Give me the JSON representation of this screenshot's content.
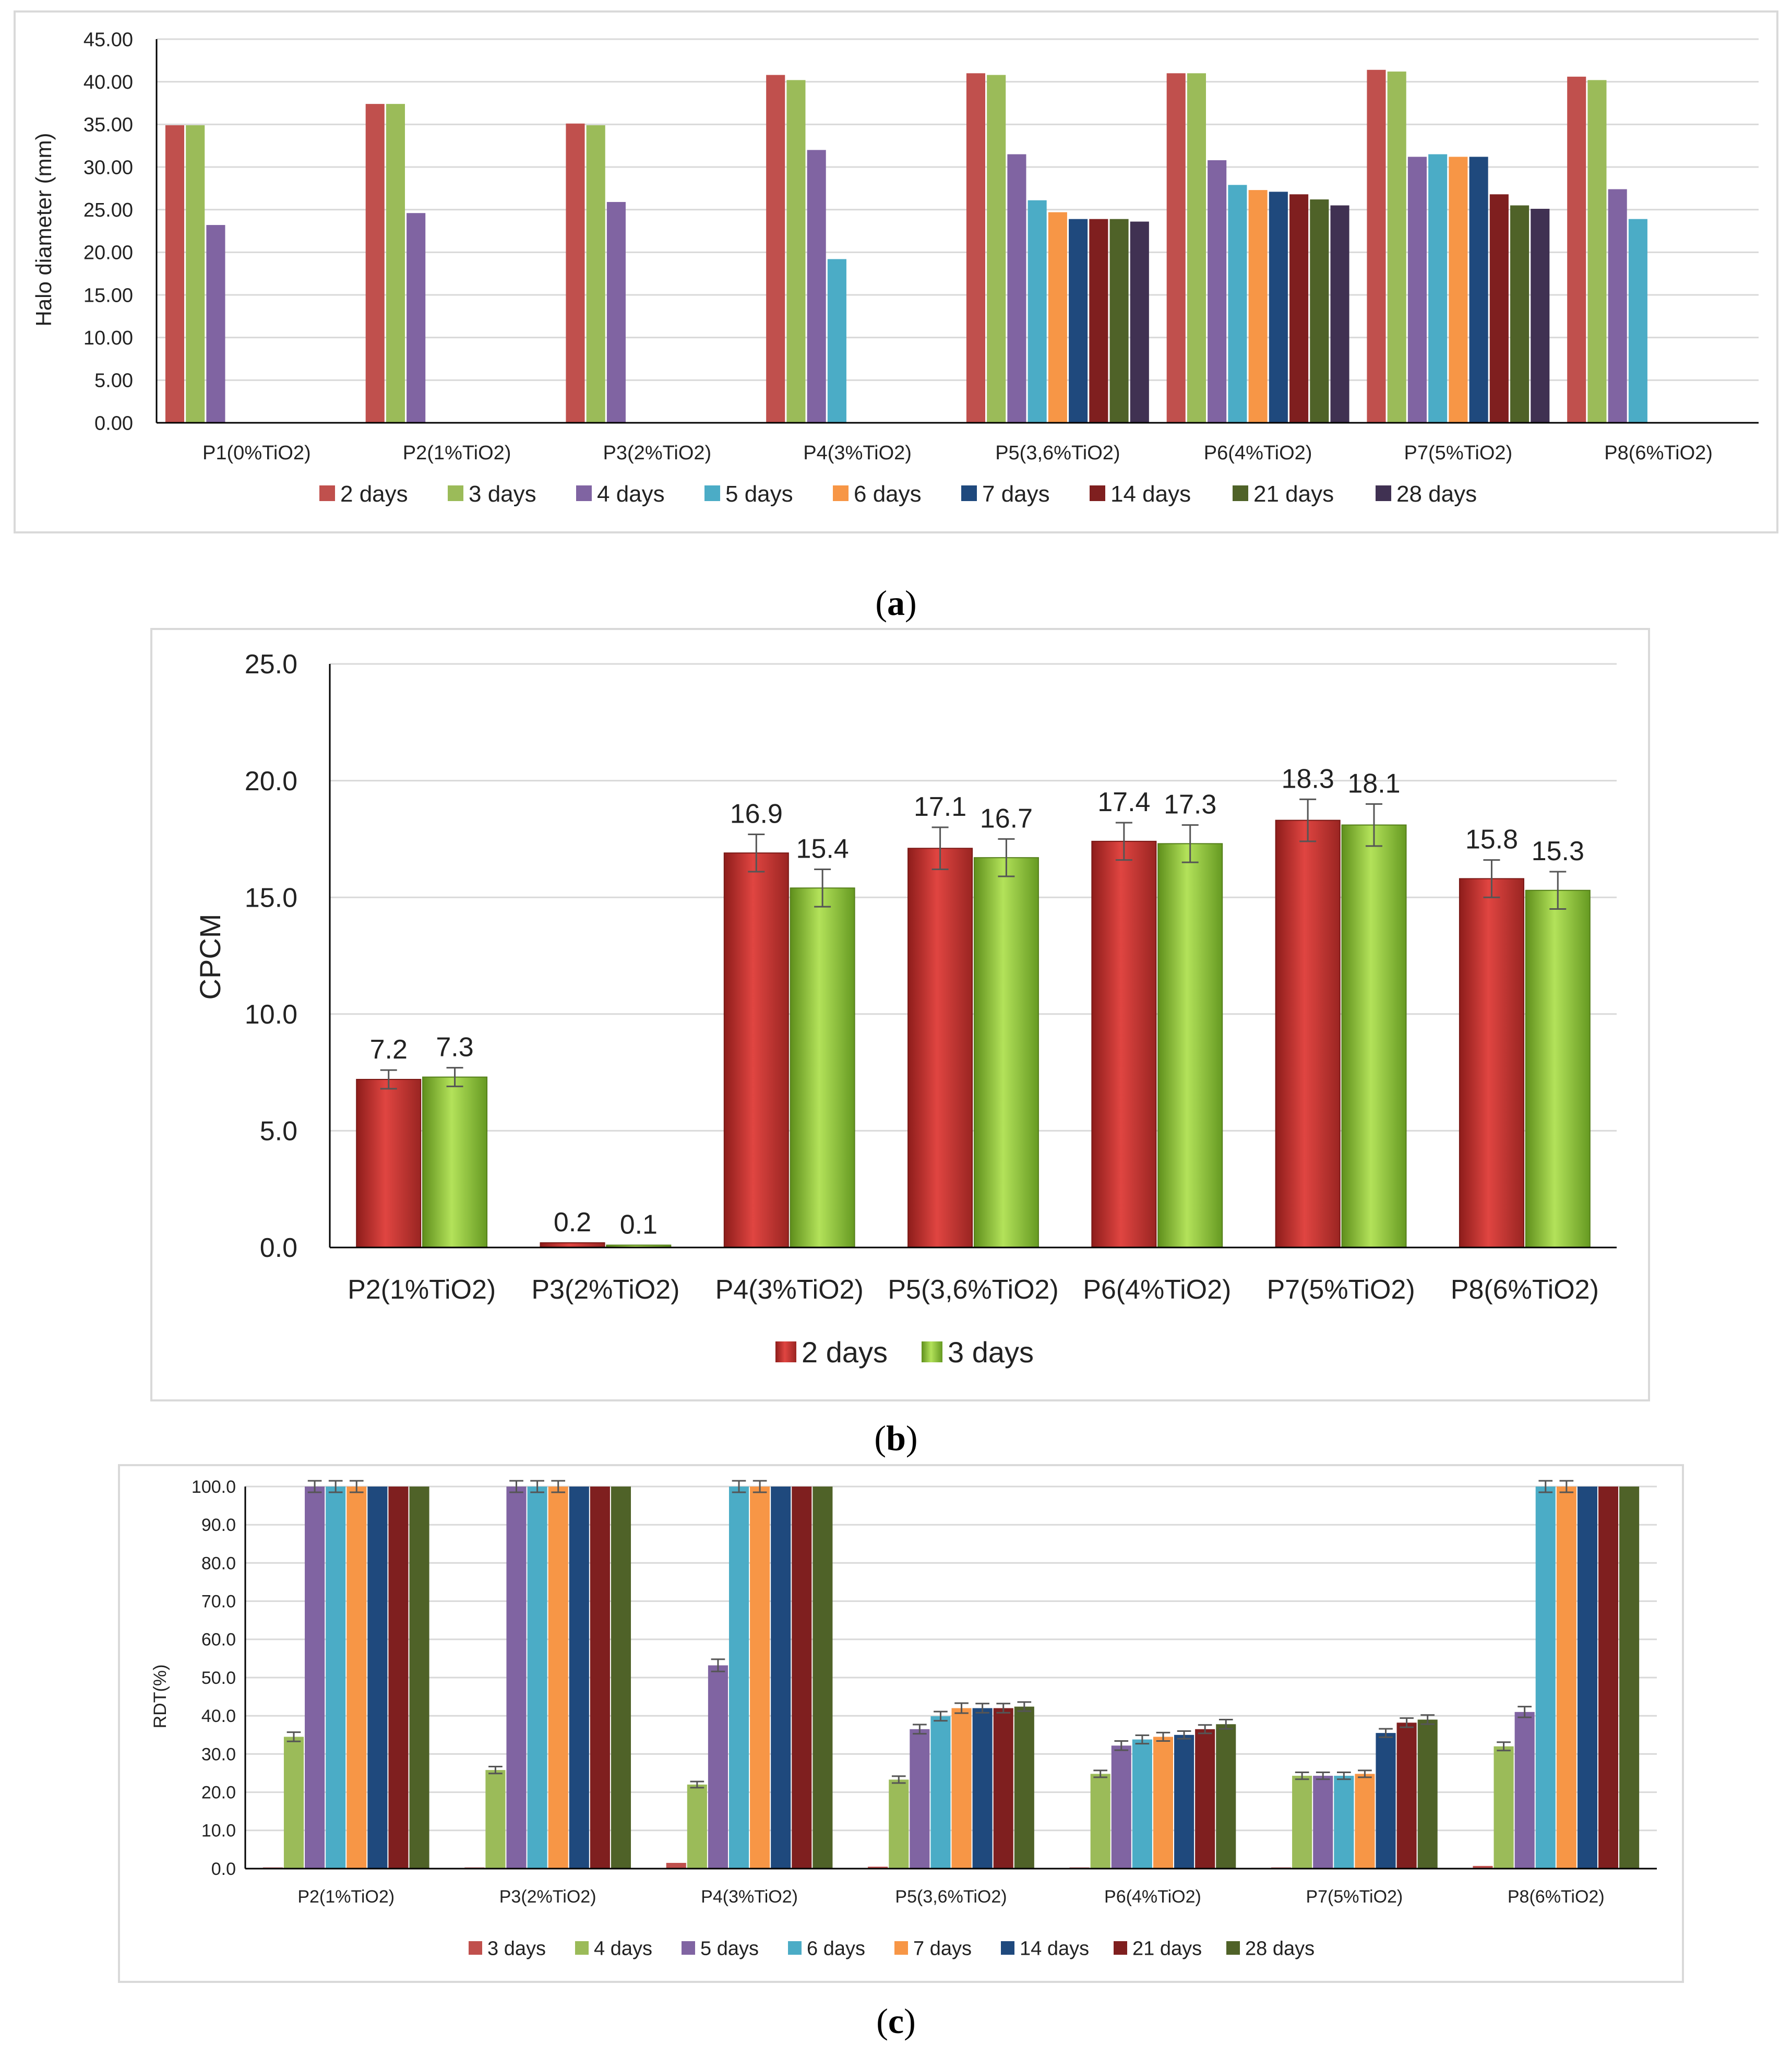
{
  "panel_labels": {
    "a_open": "(",
    "a_letter": "a",
    "a_close": ")",
    "b_open": "(",
    "b_letter": "b",
    "b_close": ")",
    "c_open": "(",
    "c_letter": "c",
    "c_close": ")"
  },
  "chart_data": [
    {
      "id": "a",
      "type": "bar",
      "title": "",
      "xlabel": "",
      "ylabel": "Halo diameter (mm)",
      "ylim": [
        0,
        45
      ],
      "ytick_step": 5,
      "ytick_decimals": 2,
      "grid": true,
      "legend_position": "bottom",
      "categories": [
        "P1(0%TiO2)",
        "P2(1%TiO2)",
        "P3(2%TiO2)",
        "P4(3%TiO2)",
        "P5(3,6%TiO2)",
        "P6(4%TiO2)",
        "P7(5%TiO2)",
        "P8(6%TiO2)"
      ],
      "series": [
        {
          "name": "2 days",
          "color": "#c0504d",
          "values": [
            34.9,
            37.4,
            35.1,
            40.8,
            41.0,
            41.0,
            41.4,
            40.6
          ]
        },
        {
          "name": "3 days",
          "color": "#9bbb59",
          "values": [
            34.9,
            37.4,
            34.9,
            40.2,
            40.8,
            41.0,
            41.2,
            40.2
          ]
        },
        {
          "name": "4 days",
          "color": "#8064a2",
          "values": [
            23.2,
            24.6,
            25.9,
            32.0,
            31.5,
            30.8,
            31.2,
            27.4
          ]
        },
        {
          "name": "5 days",
          "color": "#4bacc6",
          "values": [
            null,
            null,
            null,
            19.2,
            26.1,
            27.9,
            31.5,
            23.9
          ]
        },
        {
          "name": "6 days",
          "color": "#f79646",
          "values": [
            null,
            null,
            null,
            null,
            24.7,
            27.3,
            31.2,
            null
          ]
        },
        {
          "name": "7 days",
          "color": "#1f497d",
          "values": [
            null,
            null,
            null,
            null,
            23.9,
            27.1,
            31.2,
            null
          ]
        },
        {
          "name": "14 days",
          "color": "#7f1f1f",
          "values": [
            null,
            null,
            null,
            null,
            23.9,
            26.8,
            26.8,
            null
          ]
        },
        {
          "name": "21 days",
          "color": "#4f6228",
          "values": [
            null,
            null,
            null,
            null,
            23.9,
            26.2,
            25.5,
            null
          ]
        },
        {
          "name": "28 days",
          "color": "#403152",
          "values": [
            null,
            null,
            null,
            null,
            23.6,
            25.5,
            25.1,
            null
          ]
        }
      ]
    },
    {
      "id": "b",
      "type": "bar",
      "title": "",
      "xlabel": "",
      "ylabel": "CPCM",
      "ylim": [
        0,
        25
      ],
      "ytick_step": 5,
      "ytick_decimals": 1,
      "grid": true,
      "legend_position": "bottom",
      "categories": [
        "P2(1%TiO2)",
        "P3(2%TiO2)",
        "P4(3%TiO2)",
        "P5(3,6%TiO2)",
        "P6(4%TiO2)",
        "P7(5%TiO2)",
        "P8(6%TiO2)"
      ],
      "series": [
        {
          "name": "2 days",
          "color": "#c0504d",
          "values": [
            7.2,
            0.2,
            16.9,
            17.1,
            17.4,
            18.3,
            15.8
          ],
          "labels": [
            "7.2",
            "0.2",
            "16.9",
            "17.1",
            "17.4",
            "18.3",
            "15.8"
          ],
          "errors": [
            0.4,
            0.0,
            0.8,
            0.9,
            0.8,
            0.9,
            0.8
          ]
        },
        {
          "name": "3 days",
          "color": "#9bbb59",
          "values": [
            7.3,
            0.1,
            15.4,
            16.7,
            17.3,
            18.1,
            15.3
          ],
          "labels": [
            "7.3",
            "0.1",
            "15.4",
            "16.7",
            "17.3",
            "18.1",
            "15.3"
          ],
          "errors": [
            0.4,
            0.0,
            0.8,
            0.8,
            0.8,
            0.9,
            0.8
          ]
        }
      ]
    },
    {
      "id": "c",
      "type": "bar",
      "title": "",
      "xlabel": "",
      "ylabel": "RDT(%)",
      "ylim": [
        0,
        100
      ],
      "ytick_step": 10,
      "ytick_decimals": 1,
      "grid": true,
      "legend_position": "bottom",
      "categories": [
        "P2(1%TiO2)",
        "P3(2%TiO2)",
        "P4(3%TiO2)",
        "P5(3,6%TiO2)",
        "P6(4%TiO2)",
        "P7(5%TiO2)",
        "P8(6%TiO2)"
      ],
      "series": [
        {
          "name": "3 days",
          "color": "#c0504d",
          "values": [
            0.3,
            0.3,
            1.5,
            0.5,
            0.3,
            0.3,
            0.7
          ],
          "errors": [
            0,
            0,
            0,
            0,
            0,
            0,
            0
          ]
        },
        {
          "name": "4 days",
          "color": "#9bbb59",
          "values": [
            34.5,
            25.8,
            22.0,
            23.3,
            24.8,
            24.3,
            32.0
          ],
          "errors": [
            1.2,
            0.9,
            0.8,
            0.9,
            0.9,
            0.9,
            1.1
          ]
        },
        {
          "name": "5 days",
          "color": "#8064a2",
          "values": [
            100,
            100,
            53.2,
            36.5,
            32.2,
            24.3,
            41.0
          ],
          "errors": [
            1.5,
            1.5,
            1.6,
            1.2,
            1.2,
            0.9,
            1.4
          ]
        },
        {
          "name": "6 days",
          "color": "#4bacc6",
          "values": [
            100,
            100,
            100,
            39.9,
            33.8,
            24.3,
            100
          ],
          "errors": [
            1.5,
            1.5,
            1.5,
            1.2,
            1.1,
            0.9,
            1.5
          ]
        },
        {
          "name": "7 days",
          "color": "#f79646",
          "values": [
            100,
            100,
            100,
            42.0,
            34.5,
            24.8,
            100
          ],
          "errors": [
            1.5,
            1.5,
            1.5,
            1.3,
            1.1,
            0.9,
            1.5
          ]
        },
        {
          "name": "14 days",
          "color": "#1f497d",
          "values": [
            100,
            100,
            100,
            42.0,
            35.0,
            35.5,
            100
          ],
          "errors": [
            0,
            0,
            0,
            1.2,
            1.0,
            1.1,
            0
          ]
        },
        {
          "name": "21 days",
          "color": "#7f1f1f",
          "values": [
            100,
            100,
            100,
            42.0,
            36.5,
            38.2,
            100
          ],
          "errors": [
            0,
            0,
            0,
            1.2,
            1.1,
            1.2,
            0
          ]
        },
        {
          "name": "28 days",
          "color": "#4f6228",
          "values": [
            100,
            100,
            100,
            42.4,
            37.8,
            39.0,
            100
          ],
          "errors": [
            0,
            0,
            0,
            1.2,
            1.2,
            1.2,
            0
          ]
        }
      ]
    }
  ]
}
